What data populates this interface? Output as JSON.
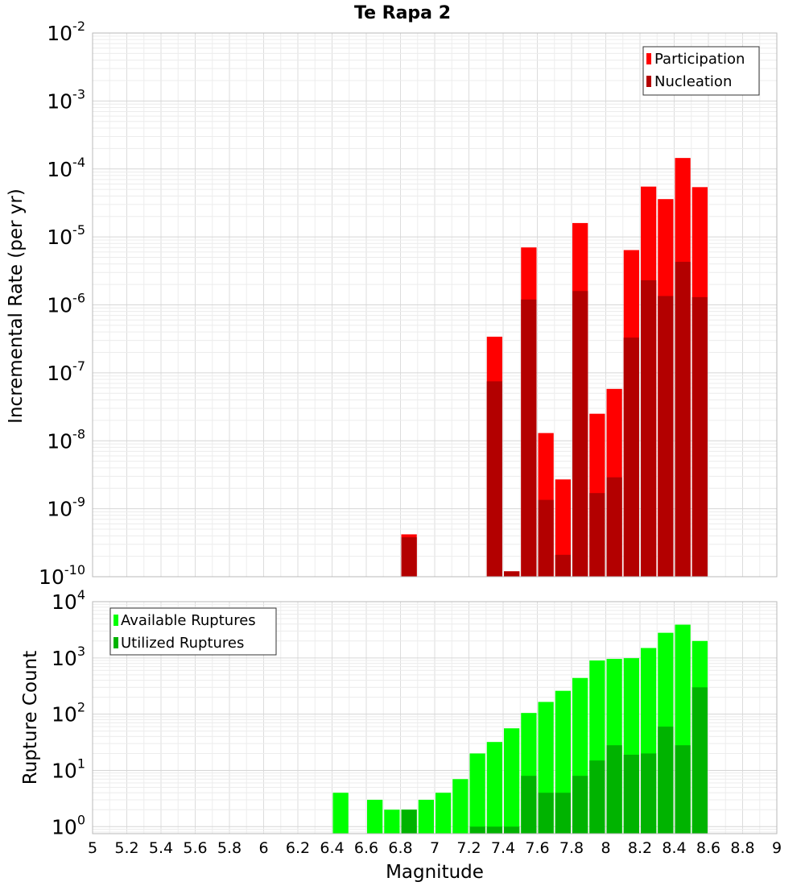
{
  "chart_data": [
    {
      "type": "bar",
      "title": "Te Rapa 2",
      "ylabel": "Incremental Rate (per yr)",
      "xlabel": "",
      "y_scale": "log",
      "ylim": [
        1e-10,
        0.01
      ],
      "xlim": [
        5,
        9
      ],
      "y_ticks": [
        {
          "base": "10",
          "exp": "-10",
          "value": 1e-10
        },
        {
          "base": "10",
          "exp": "-9",
          "value": 1e-09
        },
        {
          "base": "10",
          "exp": "-8",
          "value": 1e-08
        },
        {
          "base": "10",
          "exp": "-7",
          "value": 1e-07
        },
        {
          "base": "10",
          "exp": "-6",
          "value": 1e-06
        },
        {
          "base": "10",
          "exp": "-5",
          "value": 1e-05
        },
        {
          "base": "10",
          "exp": "-4",
          "value": 0.0001
        },
        {
          "base": "10",
          "exp": "-3",
          "value": 0.001
        },
        {
          "base": "10",
          "exp": "-2",
          "value": 0.01
        }
      ],
      "grid": true,
      "legend_position": "top-right",
      "bin_width": 0.1,
      "series": [
        {
          "name": "Participation",
          "color": "#ff0000",
          "points": [
            {
              "x": 6.85,
              "y": 4.2e-10
            },
            {
              "x": 7.35,
              "y": 3.4e-07
            },
            {
              "x": 7.45,
              "y": 1.2e-10
            },
            {
              "x": 7.55,
              "y": 7e-06
            },
            {
              "x": 7.65,
              "y": 1.3e-08
            },
            {
              "x": 7.75,
              "y": 2.7e-09
            },
            {
              "x": 7.85,
              "y": 1.6e-05
            },
            {
              "x": 7.95,
              "y": 2.5e-08
            },
            {
              "x": 8.05,
              "y": 5.8e-08
            },
            {
              "x": 8.15,
              "y": 6.4e-06
            },
            {
              "x": 8.25,
              "y": 5.5e-05
            },
            {
              "x": 8.35,
              "y": 3.6e-05
            },
            {
              "x": 8.45,
              "y": 0.000145
            },
            {
              "x": 8.55,
              "y": 5.4e-05
            }
          ]
        },
        {
          "name": "Nucleation",
          "color": "#b30000",
          "points": [
            {
              "x": 6.85,
              "y": 3.8e-10
            },
            {
              "x": 7.35,
              "y": 7.5e-08
            },
            {
              "x": 7.45,
              "y": 1.2e-10
            },
            {
              "x": 7.55,
              "y": 1.2e-06
            },
            {
              "x": 7.65,
              "y": 1.35e-09
            },
            {
              "x": 7.75,
              "y": 2.1e-10
            },
            {
              "x": 7.85,
              "y": 1.6e-06
            },
            {
              "x": 7.95,
              "y": 1.7e-09
            },
            {
              "x": 8.05,
              "y": 2.9e-09
            },
            {
              "x": 8.15,
              "y": 3.3e-07
            },
            {
              "x": 8.25,
              "y": 2.3e-06
            },
            {
              "x": 8.35,
              "y": 1.35e-06
            },
            {
              "x": 8.45,
              "y": 4.3e-06
            },
            {
              "x": 8.55,
              "y": 1.3e-06
            }
          ]
        }
      ]
    },
    {
      "type": "bar",
      "title": "",
      "ylabel": "Rupture Count",
      "xlabel": "Magnitude",
      "y_scale": "log",
      "ylim": [
        0.75,
        10000
      ],
      "xlim": [
        5,
        9
      ],
      "y_ticks": [
        {
          "base": "10",
          "exp": "0",
          "value": 1
        },
        {
          "base": "10",
          "exp": "1",
          "value": 10
        },
        {
          "base": "10",
          "exp": "2",
          "value": 100
        },
        {
          "base": "10",
          "exp": "3",
          "value": 1000
        },
        {
          "base": "10",
          "exp": "4",
          "value": 10000
        }
      ],
      "x_ticks": [
        "5",
        "5.2",
        "5.4",
        "5.6",
        "5.8",
        "6",
        "6.2",
        "6.4",
        "6.6",
        "6.8",
        "7",
        "7.2",
        "7.4",
        "7.6",
        "7.8",
        "8",
        "8.2",
        "8.4",
        "8.6",
        "8.8",
        "9"
      ],
      "grid": true,
      "legend_position": "top-left",
      "bin_width": 0.1,
      "series": [
        {
          "name": "Available Ruptures",
          "color": "#00ff00",
          "points": [
            {
              "x": 6.45,
              "y": 4
            },
            {
              "x": 6.65,
              "y": 3
            },
            {
              "x": 6.75,
              "y": 2
            },
            {
              "x": 6.85,
              "y": 2
            },
            {
              "x": 6.95,
              "y": 3
            },
            {
              "x": 7.05,
              "y": 4
            },
            {
              "x": 7.15,
              "y": 7
            },
            {
              "x": 7.25,
              "y": 20
            },
            {
              "x": 7.35,
              "y": 32
            },
            {
              "x": 7.45,
              "y": 56
            },
            {
              "x": 7.55,
              "y": 105
            },
            {
              "x": 7.65,
              "y": 165
            },
            {
              "x": 7.75,
              "y": 260
            },
            {
              "x": 7.85,
              "y": 440
            },
            {
              "x": 7.95,
              "y": 900
            },
            {
              "x": 8.05,
              "y": 960
            },
            {
              "x": 8.15,
              "y": 990
            },
            {
              "x": 8.25,
              "y": 1500
            },
            {
              "x": 8.35,
              "y": 2800
            },
            {
              "x": 8.45,
              "y": 3900
            },
            {
              "x": 8.55,
              "y": 2000
            }
          ]
        },
        {
          "name": "Utilized Ruptures",
          "color": "#00b300",
          "points": [
            {
              "x": 6.85,
              "y": 2
            },
            {
              "x": 7.25,
              "y": 1
            },
            {
              "x": 7.35,
              "y": 1
            },
            {
              "x": 7.45,
              "y": 1
            },
            {
              "x": 7.55,
              "y": 8
            },
            {
              "x": 7.65,
              "y": 4
            },
            {
              "x": 7.75,
              "y": 4
            },
            {
              "x": 7.85,
              "y": 8
            },
            {
              "x": 7.95,
              "y": 15
            },
            {
              "x": 8.05,
              "y": 28
            },
            {
              "x": 8.15,
              "y": 19
            },
            {
              "x": 8.25,
              "y": 20
            },
            {
              "x": 8.35,
              "y": 60
            },
            {
              "x": 8.45,
              "y": 28
            },
            {
              "x": 8.55,
              "y": 300
            }
          ]
        }
      ]
    }
  ]
}
